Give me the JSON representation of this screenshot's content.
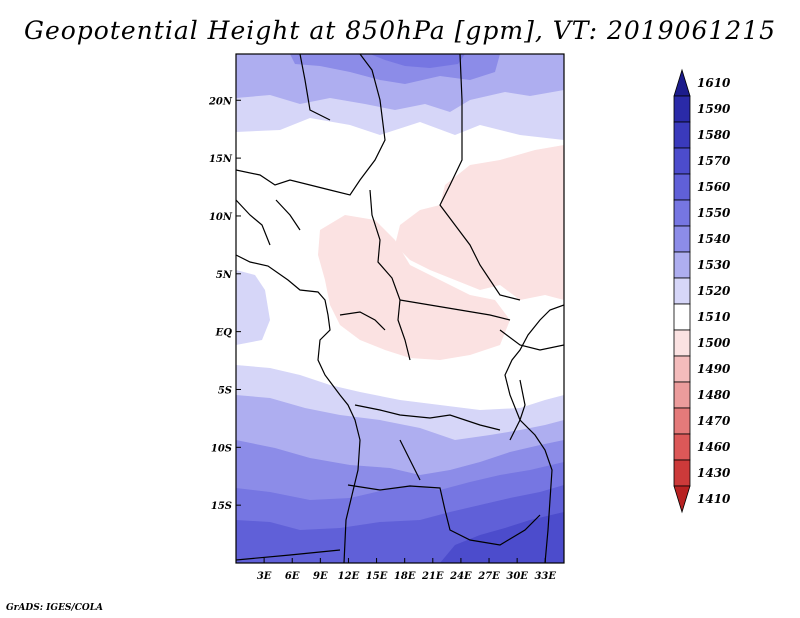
{
  "title": "Geopotential Height at 850hPa [gpm], VT: 2019061215",
  "footer": "GrADS: IGES/COLA",
  "map": {
    "lon_range": [
      0,
      35
    ],
    "lat_range": [
      -20,
      24
    ],
    "lon_ticks": [
      {
        "value": 3,
        "label": "3E"
      },
      {
        "value": 6,
        "label": "6E"
      },
      {
        "value": 9,
        "label": "9E"
      },
      {
        "value": 12,
        "label": "12E"
      },
      {
        "value": 15,
        "label": "15E"
      },
      {
        "value": 18,
        "label": "18E"
      },
      {
        "value": 21,
        "label": "21E"
      },
      {
        "value": 24,
        "label": "24E"
      },
      {
        "value": 27,
        "label": "27E"
      },
      {
        "value": 30,
        "label": "30E"
      },
      {
        "value": 33,
        "label": "33E"
      }
    ],
    "lat_ticks": [
      {
        "value": 20,
        "label": "20N"
      },
      {
        "value": 15,
        "label": "15N"
      },
      {
        "value": 10,
        "label": "10N"
      },
      {
        "value": 5,
        "label": "5N"
      },
      {
        "value": 0,
        "label": "EQ"
      },
      {
        "value": -5,
        "label": "5S"
      },
      {
        "value": -10,
        "label": "10S"
      },
      {
        "value": -15,
        "label": "15S"
      }
    ]
  },
  "colorbar": {
    "levels": [
      {
        "label": "1610",
        "color": "#1c1c8c"
      },
      {
        "label": "1590",
        "color": "#2a2aa8"
      },
      {
        "label": "1580",
        "color": "#3a3abc"
      },
      {
        "label": "1570",
        "color": "#4c4ccc"
      },
      {
        "label": "1560",
        "color": "#6060d8"
      },
      {
        "label": "1550",
        "color": "#7676e2"
      },
      {
        "label": "1540",
        "color": "#8c8ce8"
      },
      {
        "label": "1530",
        "color": "#aeaef0"
      },
      {
        "label": "1520",
        "color": "#d6d6f8"
      },
      {
        "label": "1510",
        "color": "#ffffff"
      },
      {
        "label": "1500",
        "color": "#fbe2e2"
      },
      {
        "label": "1490",
        "color": "#f4bcbc"
      },
      {
        "label": "1480",
        "color": "#ec9c9c"
      },
      {
        "label": "1470",
        "color": "#e47a7a"
      },
      {
        "label": "1460",
        "color": "#dc5858"
      },
      {
        "label": "1430",
        "color": "#cc3a3a"
      },
      {
        "label": "1410",
        "color": "#b82222"
      }
    ]
  }
}
